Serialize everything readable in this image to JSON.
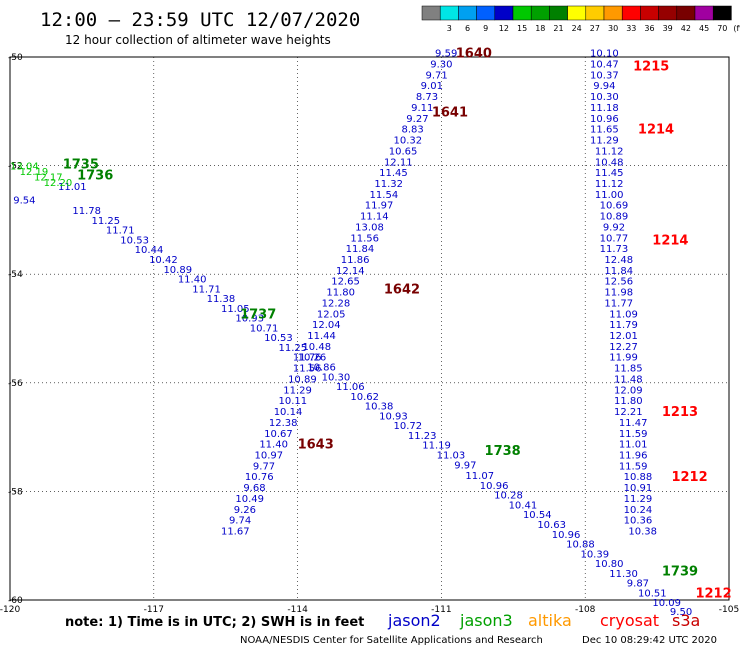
{
  "header": {
    "title": "12:00 – 23:59 UTC 12/07/2020",
    "subtitle": "12 hour collection of altimeter wave heights"
  },
  "legend_bar": {
    "unit": "(ft)",
    "bins": [
      {
        "label": "",
        "color": "#808080"
      },
      {
        "label": "3",
        "color": "#00e5e5"
      },
      {
        "label": "6",
        "color": "#00a0f0"
      },
      {
        "label": "9",
        "color": "#0060ff"
      },
      {
        "label": "12",
        "color": "#0000c8"
      },
      {
        "label": "15",
        "color": "#00c800"
      },
      {
        "label": "18",
        "color": "#00a000"
      },
      {
        "label": "21",
        "color": "#008000"
      },
      {
        "label": "24",
        "color": "#ffff00"
      },
      {
        "label": "27",
        "color": "#ffcc00"
      },
      {
        "label": "30",
        "color": "#ff9900"
      },
      {
        "label": "33",
        "color": "#ff0000"
      },
      {
        "label": "36",
        "color": "#c80000"
      },
      {
        "label": "39",
        "color": "#960000"
      },
      {
        "label": "42",
        "color": "#780000"
      },
      {
        "label": "45",
        "color": "#a000a0"
      },
      {
        "label": "70",
        "color": "#000000"
      }
    ]
  },
  "footer": {
    "note": "note: 1) Time is in UTC; 2) SWH is in feet",
    "credit": "NOAA/NESDIS Center for Satellite Applications and Research",
    "timestamp": "Dec 10 08:29:42 UTC 2020",
    "satellites": [
      {
        "name": "jason2",
        "color": "#0000c8"
      },
      {
        "name": "jason3",
        "color": "#00a000"
      },
      {
        "name": "altika",
        "color": "#ff9900"
      },
      {
        "name": "cryosat",
        "color": "#ff0000"
      },
      {
        "name": "s3a",
        "color": "#c80000"
      }
    ]
  },
  "chart_data": {
    "type": "scatter",
    "xlim": [
      -120,
      -105
    ],
    "ylim": [
      -60,
      -50
    ],
    "x_ticks": [
      -120,
      -117,
      -114,
      -111,
      -108,
      -105
    ],
    "y_ticks": [
      -50,
      -52,
      -54,
      -56,
      -58,
      -60
    ],
    "x_tick_labels": [
      "-120",
      "-117",
      "-114",
      "-111",
      "-108",
      "-105"
    ],
    "y_tick_labels": [
      "-50",
      "-52",
      "-54",
      "-56",
      "-58",
      "-60"
    ],
    "grid": true,
    "series": [
      {
        "color": "#0000c8",
        "points": [
          {
            "x": -118.7,
            "y": -52.38,
            "v": "11.01"
          },
          {
            "x": -119.7,
            "y": -52.62,
            "v": "9.54"
          },
          {
            "x": -118.4,
            "y": -52.82,
            "v": "11.78"
          },
          {
            "x": -118.0,
            "y": -53.0,
            "v": "11.25"
          },
          {
            "x": -117.7,
            "y": -53.18,
            "v": "11.71"
          },
          {
            "x": -117.4,
            "y": -53.36,
            "v": "10.53"
          },
          {
            "x": -117.1,
            "y": -53.54,
            "v": "10.44"
          },
          {
            "x": -116.8,
            "y": -53.72,
            "v": "10.42"
          },
          {
            "x": -116.5,
            "y": -53.9,
            "v": "10.89"
          },
          {
            "x": -116.2,
            "y": -54.08,
            "v": "11.40"
          },
          {
            "x": -115.9,
            "y": -54.26,
            "v": "11.71"
          },
          {
            "x": -115.6,
            "y": -54.44,
            "v": "11.38"
          },
          {
            "x": -115.3,
            "y": -54.62,
            "v": "11.05"
          },
          {
            "x": -115.0,
            "y": -54.8,
            "v": "10.93"
          },
          {
            "x": -114.7,
            "y": -54.98,
            "v": "10.71"
          },
          {
            "x": -114.4,
            "y": -55.16,
            "v": "10.53"
          },
          {
            "x": -114.1,
            "y": -55.34,
            "v": "11.25"
          },
          {
            "x": -113.8,
            "y": -55.52,
            "v": "11.76"
          },
          {
            "x": -113.5,
            "y": -55.7,
            "v": "10.86"
          },
          {
            "x": -113.2,
            "y": -55.88,
            "v": "10.30"
          },
          {
            "x": -112.9,
            "y": -56.06,
            "v": "11.06"
          },
          {
            "x": -112.6,
            "y": -56.24,
            "v": "10.62"
          },
          {
            "x": -112.3,
            "y": -56.42,
            "v": "10.38"
          },
          {
            "x": -112.0,
            "y": -56.6,
            "v": "10.93"
          },
          {
            "x": -111.7,
            "y": -56.78,
            "v": "10.72"
          },
          {
            "x": -111.4,
            "y": -56.96,
            "v": "11.23"
          },
          {
            "x": -111.1,
            "y": -57.14,
            "v": "11.19"
          },
          {
            "x": -110.8,
            "y": -57.32,
            "v": "11.03"
          },
          {
            "x": -110.5,
            "y": -57.5,
            "v": "9.97"
          },
          {
            "x": -110.2,
            "y": -57.7,
            "v": "11.07"
          },
          {
            "x": -109.9,
            "y": -57.88,
            "v": "10.96"
          },
          {
            "x": -109.6,
            "y": -58.06,
            "v": "10.28"
          },
          {
            "x": -109.3,
            "y": -58.24,
            "v": "10.41"
          },
          {
            "x": -109.0,
            "y": -58.42,
            "v": "10.54"
          },
          {
            "x": -108.7,
            "y": -58.6,
            "v": "10.63"
          },
          {
            "x": -108.4,
            "y": -58.78,
            "v": "10.96"
          },
          {
            "x": -108.1,
            "y": -58.96,
            "v": "10.88"
          },
          {
            "x": -107.8,
            "y": -59.14,
            "v": "10.39"
          },
          {
            "x": -107.5,
            "y": -59.32,
            "v": "10.80"
          },
          {
            "x": -107.2,
            "y": -59.5,
            "v": "11.30"
          },
          {
            "x": -106.9,
            "y": -59.68,
            "v": "9.87"
          },
          {
            "x": -106.6,
            "y": -59.86,
            "v": "10.51"
          },
          {
            "x": -106.3,
            "y": -60.04,
            "v": "10.09"
          },
          {
            "x": -106.0,
            "y": -60.2,
            "v": "9.50"
          },
          {
            "x": -110.9,
            "y": -49.92,
            "v": "9.59"
          },
          {
            "x": -111.0,
            "y": -50.12,
            "v": "9.30"
          },
          {
            "x": -111.1,
            "y": -50.32,
            "v": "9.71"
          },
          {
            "x": -111.2,
            "y": -50.52,
            "v": "9.01"
          },
          {
            "x": -111.3,
            "y": -50.72,
            "v": "8.73"
          },
          {
            "x": -111.4,
            "y": -50.92,
            "v": "9.11"
          },
          {
            "x": -111.5,
            "y": -51.12,
            "v": "9.27"
          },
          {
            "x": -111.6,
            "y": -51.32,
            "v": "8.83"
          },
          {
            "x": -111.7,
            "y": -51.52,
            "v": "10.32"
          },
          {
            "x": -111.8,
            "y": -51.72,
            "v": "10.65"
          },
          {
            "x": -111.9,
            "y": -51.92,
            "v": "12.11"
          },
          {
            "x": -112.0,
            "y": -52.12,
            "v": "11.45"
          },
          {
            "x": -112.1,
            "y": -52.32,
            "v": "11.32"
          },
          {
            "x": -112.2,
            "y": -52.52,
            "v": "11.54"
          },
          {
            "x": -112.3,
            "y": -52.72,
            "v": "11.97"
          },
          {
            "x": -112.4,
            "y": -52.92,
            "v": "11.14"
          },
          {
            "x": -112.5,
            "y": -53.12,
            "v": "13.08"
          },
          {
            "x": -112.6,
            "y": -53.32,
            "v": "11.56"
          },
          {
            "x": -112.7,
            "y": -53.52,
            "v": "11.84"
          },
          {
            "x": -112.8,
            "y": -53.72,
            "v": "11.86"
          },
          {
            "x": -112.9,
            "y": -53.92,
            "v": "12.14"
          },
          {
            "x": -113.0,
            "y": -54.12,
            "v": "12.65"
          },
          {
            "x": -113.1,
            "y": -54.32,
            "v": "11.80"
          },
          {
            "x": -113.2,
            "y": -54.52,
            "v": "12.28"
          },
          {
            "x": -113.3,
            "y": -54.72,
            "v": "12.05"
          },
          {
            "x": -113.4,
            "y": -54.92,
            "v": "12.04"
          },
          {
            "x": -113.5,
            "y": -55.12,
            "v": "11.44"
          },
          {
            "x": -113.6,
            "y": -55.32,
            "v": "10.48"
          },
          {
            "x": -113.7,
            "y": -55.52,
            "v": "10.26"
          },
          {
            "x": -113.8,
            "y": -55.72,
            "v": "11.56"
          },
          {
            "x": -113.9,
            "y": -55.92,
            "v": "10.89"
          },
          {
            "x": -114.0,
            "y": -56.12,
            "v": "11.29"
          },
          {
            "x": -114.1,
            "y": -56.32,
            "v": "10.11"
          },
          {
            "x": -114.2,
            "y": -56.52,
            "v": "10.14"
          },
          {
            "x": -114.3,
            "y": -56.72,
            "v": "12.38"
          },
          {
            "x": -114.4,
            "y": -56.92,
            "v": "10.67"
          },
          {
            "x": -114.5,
            "y": -57.12,
            "v": "11.40"
          },
          {
            "x": -114.6,
            "y": -57.32,
            "v": "10.97"
          },
          {
            "x": -114.7,
            "y": -57.52,
            "v": "9.77"
          },
          {
            "x": -114.8,
            "y": -57.72,
            "v": "10.76"
          },
          {
            "x": -114.9,
            "y": -57.92,
            "v": "9.68"
          },
          {
            "x": -115.0,
            "y": -58.12,
            "v": "10.49"
          },
          {
            "x": -115.1,
            "y": -58.32,
            "v": "9.26"
          },
          {
            "x": -115.2,
            "y": -58.52,
            "v": "9.74"
          },
          {
            "x": -115.3,
            "y": -58.72,
            "v": "11.67"
          },
          {
            "x": -107.6,
            "y": -49.92,
            "v": "10.10"
          },
          {
            "x": -107.6,
            "y": -50.12,
            "v": "10.47"
          },
          {
            "x": -107.6,
            "y": -50.32,
            "v": "10.37"
          },
          {
            "x": -107.6,
            "y": -50.52,
            "v": "9.94"
          },
          {
            "x": -107.6,
            "y": -50.72,
            "v": "10.30"
          },
          {
            "x": -107.6,
            "y": -50.92,
            "v": "11.18"
          },
          {
            "x": -107.6,
            "y": -51.12,
            "v": "10.96"
          },
          {
            "x": -107.6,
            "y": -51.32,
            "v": "11.65"
          },
          {
            "x": -107.6,
            "y": -51.52,
            "v": "11.29"
          },
          {
            "x": -107.5,
            "y": -51.72,
            "v": "11.12"
          },
          {
            "x": -107.5,
            "y": -51.92,
            "v": "10.48"
          },
          {
            "x": -107.5,
            "y": -52.12,
            "v": "11.45"
          },
          {
            "x": -107.5,
            "y": -52.32,
            "v": "11.12"
          },
          {
            "x": -107.5,
            "y": -52.52,
            "v": "11.00"
          },
          {
            "x": -107.4,
            "y": -52.72,
            "v": "10.69"
          },
          {
            "x": -107.4,
            "y": -52.92,
            "v": "10.89"
          },
          {
            "x": -107.4,
            "y": -53.12,
            "v": "9.92"
          },
          {
            "x": -107.4,
            "y": -53.32,
            "v": "10.77"
          },
          {
            "x": -107.4,
            "y": -53.52,
            "v": "11.73"
          },
          {
            "x": -107.3,
            "y": -53.72,
            "v": "12.48"
          },
          {
            "x": -107.3,
            "y": -53.92,
            "v": "11.84"
          },
          {
            "x": -107.3,
            "y": -54.12,
            "v": "12.56"
          },
          {
            "x": -107.3,
            "y": -54.32,
            "v": "11.98"
          },
          {
            "x": -107.3,
            "y": -54.52,
            "v": "11.77"
          },
          {
            "x": -107.2,
            "y": -54.72,
            "v": "11.09"
          },
          {
            "x": -107.2,
            "y": -54.92,
            "v": "11.79"
          },
          {
            "x": -107.2,
            "y": -55.12,
            "v": "12.01"
          },
          {
            "x": -107.2,
            "y": -55.32,
            "v": "12.27"
          },
          {
            "x": -107.2,
            "y": -55.52,
            "v": "11.99"
          },
          {
            "x": -107.1,
            "y": -55.72,
            "v": "11.85"
          },
          {
            "x": -107.1,
            "y": -55.92,
            "v": "11.48"
          },
          {
            "x": -107.1,
            "y": -56.12,
            "v": "12.09"
          },
          {
            "x": -107.1,
            "y": -56.32,
            "v": "11.80"
          },
          {
            "x": -107.1,
            "y": -56.52,
            "v": "12.21"
          },
          {
            "x": -107.0,
            "y": -56.72,
            "v": "11.47"
          },
          {
            "x": -107.0,
            "y": -56.92,
            "v": "11.59"
          },
          {
            "x": -107.0,
            "y": -57.12,
            "v": "11.01"
          },
          {
            "x": -107.0,
            "y": -57.32,
            "v": "11.96"
          },
          {
            "x": -107.0,
            "y": -57.52,
            "v": "11.59"
          },
          {
            "x": -106.9,
            "y": -57.72,
            "v": "10.88"
          },
          {
            "x": -106.9,
            "y": -57.92,
            "v": "10.91"
          },
          {
            "x": -106.9,
            "y": -58.12,
            "v": "11.29"
          },
          {
            "x": -106.9,
            "y": -58.32,
            "v": "10.24"
          },
          {
            "x": -106.9,
            "y": -58.52,
            "v": "10.36"
          },
          {
            "x": -106.8,
            "y": -58.72,
            "v": "10.38"
          }
        ]
      },
      {
        "color": "#00c800",
        "points": [
          {
            "x": -119.7,
            "y": -52.0,
            "v": "13.04"
          },
          {
            "x": -119.5,
            "y": -52.1,
            "v": "12.19"
          },
          {
            "x": -119.2,
            "y": -52.2,
            "v": "12.17"
          },
          {
            "x": -119.0,
            "y": -52.3,
            "v": "12.20"
          }
        ]
      }
    ],
    "time_labels": [
      {
        "x": -118.9,
        "y": -51.96,
        "text": "1735",
        "color": "#008000"
      },
      {
        "x": -118.6,
        "y": -52.16,
        "text": "1736",
        "color": "#008000"
      },
      {
        "x": -115.2,
        "y": -54.72,
        "text": "1737",
        "color": "#008000"
      },
      {
        "x": -110.1,
        "y": -57.24,
        "text": "1738",
        "color": "#008000"
      },
      {
        "x": -106.4,
        "y": -59.46,
        "text": "1739",
        "color": "#008000"
      },
      {
        "x": -110.7,
        "y": -49.92,
        "text": "1640",
        "color": "#780000"
      },
      {
        "x": -111.2,
        "y": -51.0,
        "text": "1641",
        "color": "#780000"
      },
      {
        "x": -112.2,
        "y": -54.26,
        "text": "1642",
        "color": "#780000"
      },
      {
        "x": -114.0,
        "y": -57.12,
        "text": "1643",
        "color": "#780000"
      },
      {
        "x": -107.0,
        "y": -50.16,
        "text": "1215",
        "color": "#ff0000"
      },
      {
        "x": -106.9,
        "y": -51.32,
        "text": "1214",
        "color": "#ff0000"
      },
      {
        "x": -106.6,
        "y": -53.36,
        "text": "1214",
        "color": "#ff0000"
      },
      {
        "x": -106.4,
        "y": -56.52,
        "text": "1213",
        "color": "#ff0000"
      },
      {
        "x": -106.2,
        "y": -57.72,
        "text": "1212",
        "color": "#ff0000"
      },
      {
        "x": -105.7,
        "y": -59.86,
        "text": "1212",
        "color": "#ff0000"
      }
    ]
  }
}
